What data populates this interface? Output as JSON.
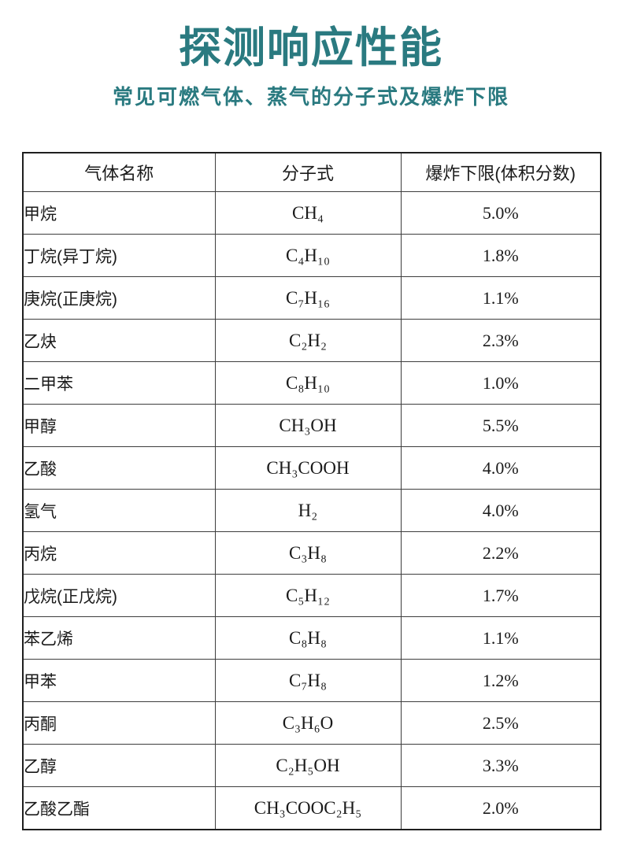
{
  "page": {
    "title": "探测响应性能",
    "subtitle": "常见可燃气体、蒸气的分子式及爆炸下限"
  },
  "colors": {
    "accent_teal": "#2a7a80",
    "text": "#1a1a1a",
    "table_border": "#3d3d3d"
  },
  "table": {
    "headers": [
      "气体名称",
      "分子式",
      "爆炸下限(体积分数)"
    ],
    "rows": [
      {
        "gas": "甲烷",
        "formula": "CH₄",
        "lel": "5.0%"
      },
      {
        "gas": "丁烷(异丁烷)",
        "formula": "C₄H₁₀",
        "lel": "1.8%"
      },
      {
        "gas": "庚烷(正庚烷)",
        "formula": "C₇H₁₆",
        "lel": "1.1%"
      },
      {
        "gas": "乙炔",
        "formula": "C₂H₂",
        "lel": "2.3%"
      },
      {
        "gas": "二甲苯",
        "formula": "C₈H₁₀",
        "lel": "1.0%"
      },
      {
        "gas": "甲醇",
        "formula": "CH₃OH",
        "lel": "5.5%"
      },
      {
        "gas": "乙酸",
        "formula": "CH₃COOH",
        "lel": "4.0%"
      },
      {
        "gas": "氢气",
        "formula": "H₂",
        "lel": "4.0%"
      },
      {
        "gas": "丙烷",
        "formula": "C₃H₈",
        "lel": "2.2%"
      },
      {
        "gas": "戊烷(正戊烷)",
        "formula": "C₅H₁₂",
        "lel": "1.7%"
      },
      {
        "gas": "苯乙烯",
        "formula": "C₈H₈",
        "lel": "1.1%"
      },
      {
        "gas": "甲苯",
        "formula": "C₇H₈",
        "lel": "1.2%"
      },
      {
        "gas": "丙酮",
        "formula": "C₃H₆O",
        "lel": "2.5%"
      },
      {
        "gas": "乙醇",
        "formula": "C₂H₅OH",
        "lel": "3.3%"
      },
      {
        "gas": "乙酸乙酯",
        "formula": "CH₃COOC₂H₅",
        "lel": "2.0%"
      }
    ]
  }
}
